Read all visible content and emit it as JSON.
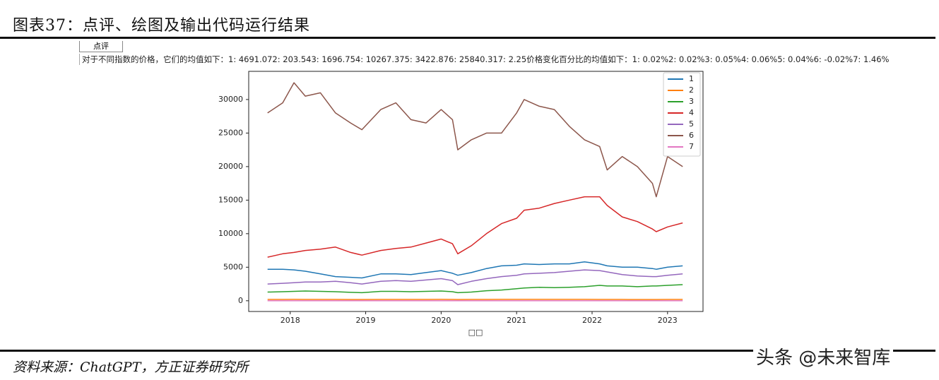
{
  "header": {
    "title": "图表37：点评、绘图及输出代码运行结果"
  },
  "button": "点评",
  "note": "对于不同指数的价格，它们的均值如下：1: 4691.072: 203.543: 1696.754: 10267.375: 3422.876: 25840.317: 2.25价格变化百分比的均值如下：1: 0.02%2: 0.02%3: 0.05%4: 0.06%5: 0.04%6: -0.02%7: 1.46%",
  "chart_data": {
    "type": "line",
    "xlabel": "□□",
    "x": [
      2017.7,
      2017.9,
      2018.05,
      2018.2,
      2018.4,
      2018.6,
      2018.8,
      2018.95,
      2019.2,
      2019.4,
      2019.6,
      2019.8,
      2020.0,
      2020.15,
      2020.22,
      2020.4,
      2020.6,
      2020.8,
      2021.0,
      2021.1,
      2021.3,
      2021.5,
      2021.7,
      2021.9,
      2022.1,
      2022.2,
      2022.4,
      2022.6,
      2022.8,
      2022.85,
      2023.0,
      2023.2
    ],
    "series": [
      {
        "name": "1",
        "color": "#1f77b4",
        "values": [
          4700,
          4700,
          4600,
          4400,
          4000,
          3600,
          3500,
          3400,
          4000,
          4000,
          3900,
          4200,
          4500,
          4100,
          3800,
          4200,
          4800,
          5200,
          5300,
          5500,
          5400,
          5500,
          5500,
          5800,
          5500,
          5200,
          5000,
          5000,
          4800,
          4700,
          5000,
          5200
        ]
      },
      {
        "name": "2",
        "color": "#ff7f0e",
        "values": [
          200,
          205,
          210,
          205,
          200,
          200,
          195,
          190,
          200,
          205,
          200,
          205,
          210,
          200,
          190,
          200,
          205,
          210,
          215,
          215,
          215,
          210,
          210,
          210,
          205,
          200,
          200,
          195,
          195,
          195,
          200,
          200
        ]
      },
      {
        "name": "3",
        "color": "#2ca02c",
        "values": [
          1300,
          1350,
          1400,
          1450,
          1400,
          1350,
          1250,
          1200,
          1400,
          1400,
          1350,
          1400,
          1450,
          1350,
          1200,
          1300,
          1500,
          1600,
          1800,
          1900,
          2000,
          1950,
          2000,
          2100,
          2300,
          2200,
          2200,
          2100,
          2200,
          2200,
          2300,
          2400
        ]
      },
      {
        "name": "4",
        "color": "#d62728",
        "values": [
          6500,
          7000,
          7200,
          7500,
          7700,
          8000,
          7200,
          6800,
          7500,
          7800,
          8000,
          8600,
          9200,
          8500,
          7000,
          8200,
          10000,
          11500,
          12300,
          13500,
          13800,
          14500,
          15000,
          15500,
          15500,
          14200,
          12500,
          11800,
          10700,
          10300,
          11000,
          11600
        ]
      },
      {
        "name": "5",
        "color": "#9467bd",
        "values": [
          2500,
          2600,
          2700,
          2800,
          2800,
          2900,
          2700,
          2500,
          2900,
          3000,
          2900,
          3100,
          3300,
          3000,
          2400,
          2900,
          3300,
          3600,
          3800,
          4000,
          4100,
          4200,
          4400,
          4600,
          4500,
          4300,
          3900,
          3700,
          3600,
          3600,
          3800,
          4000
        ]
      },
      {
        "name": "6",
        "color": "#8c564b",
        "values": [
          28000,
          29500,
          32500,
          30500,
          31000,
          28000,
          26500,
          25500,
          28500,
          29500,
          27000,
          26500,
          28500,
          27000,
          22500,
          24000,
          25000,
          25000,
          28000,
          30000,
          29000,
          28500,
          26000,
          24000,
          23000,
          19500,
          21500,
          20000,
          17500,
          15500,
          21500,
          20000
        ]
      },
      {
        "name": "7",
        "color": "#e377c2",
        "values": [
          2,
          2,
          2,
          2,
          2,
          2,
          2,
          2,
          2,
          2,
          2,
          2,
          2,
          2,
          2,
          2,
          2,
          2,
          2,
          2,
          2,
          2,
          2,
          2,
          2,
          2,
          2,
          2,
          2,
          2,
          2,
          2
        ]
      }
    ],
    "xlim": [
      2017.45,
      2023.47
    ],
    "xticks": [
      2018,
      2019,
      2020,
      2021,
      2022,
      2023
    ],
    "ylim": [
      -1600,
      34200
    ],
    "yticks": [
      0,
      5000,
      10000,
      15000,
      20000,
      25000,
      30000
    ],
    "legend": "upper right"
  },
  "source": "资料来源：ChatGPT，方正证券研究所",
  "watermark": "头条 @未来智库"
}
